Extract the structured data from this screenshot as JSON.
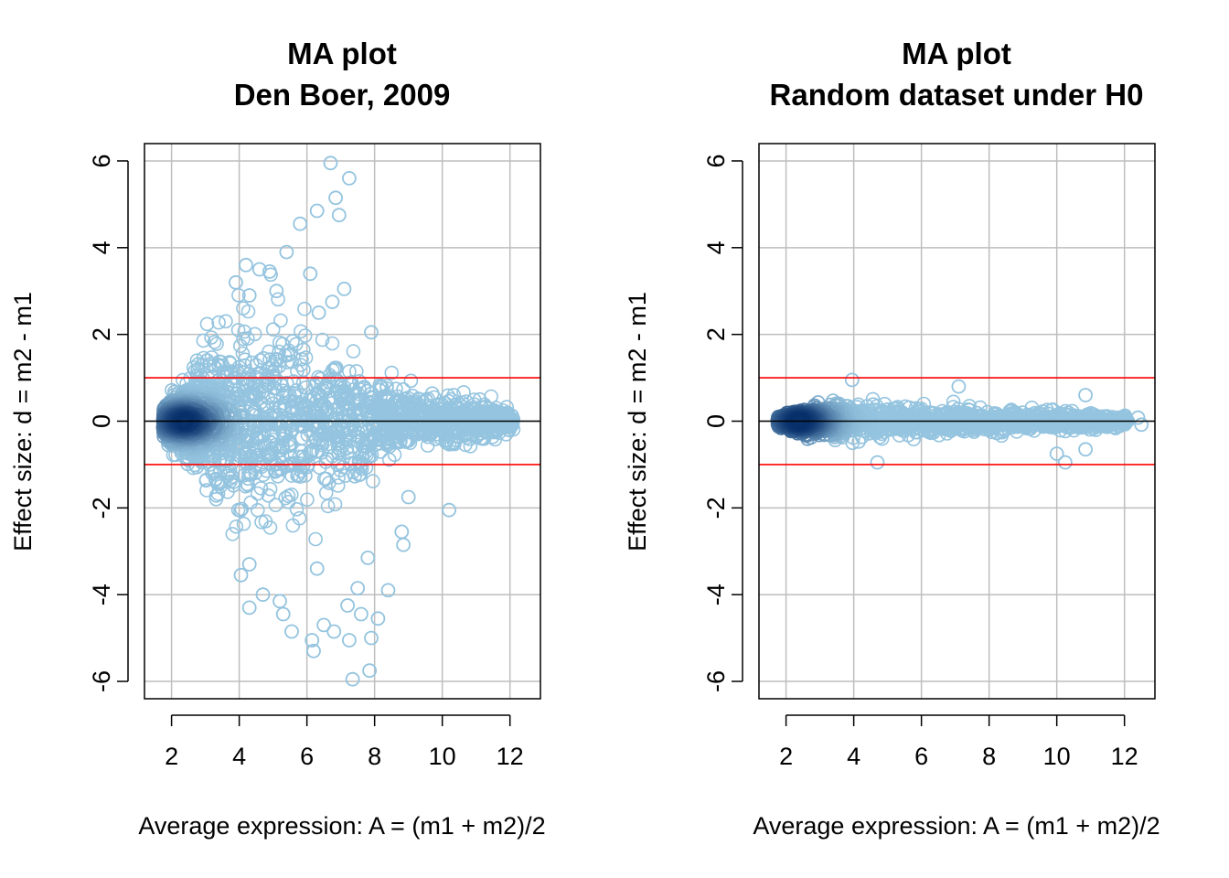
{
  "colors": {
    "background": "#ffffff",
    "frame": "#000000",
    "grid": "#bebebe",
    "threshold_line": "#ff0000",
    "zero_line": "#000000",
    "points_light": "#94c4df",
    "points_dense": "#08306b"
  },
  "chart_data": [
    {
      "type": "scatter",
      "title_line1": "MA plot",
      "title_line2": "Den Boer, 2009",
      "xlabel": "Average expression: A = (m1 + m2)/2",
      "ylabel": "Effect size: d = m2 - m1",
      "xlim": [
        1.2,
        12.9
      ],
      "ylim": [
        -6.4,
        6.4
      ],
      "x_ticks": [
        2,
        4,
        6,
        8,
        10,
        12
      ],
      "y_ticks": [
        6,
        4,
        2,
        0,
        -2,
        -4,
        -6
      ],
      "x_tick_labels": [
        "2",
        "4",
        "6",
        "8",
        "10",
        "12"
      ],
      "y_tick_labels": [
        "6",
        "4",
        "2",
        "0",
        "-2",
        "-4",
        "-6"
      ],
      "grid": true,
      "hlines": [
        {
          "y": 1,
          "color": "#ff0000"
        },
        {
          "y": -1,
          "color": "#ff0000"
        },
        {
          "y": 0,
          "color": "#000000"
        }
      ],
      "marker": "open-circle",
      "density_coloring": "dark blue at high density, light blue at low density",
      "cloud_profile": [
        {
          "a": 1.8,
          "spread": 0.4
        },
        {
          "a": 2.5,
          "spread": 0.9
        },
        {
          "a": 3.0,
          "spread": 1.6
        },
        {
          "a": 4.0,
          "spread": 2.4
        },
        {
          "a": 5.0,
          "spread": 2.6
        },
        {
          "a": 6.0,
          "spread": 2.2
        },
        {
          "a": 7.0,
          "spread": 1.7
        },
        {
          "a": 8.0,
          "spread": 1.1
        },
        {
          "a": 9.0,
          "spread": 0.75
        },
        {
          "a": 10.0,
          "spread": 0.6
        },
        {
          "a": 11.0,
          "spread": 0.55
        },
        {
          "a": 12.0,
          "spread": 0.25
        }
      ],
      "outliers": [
        [
          6.7,
          5.95
        ],
        [
          7.25,
          5.6
        ],
        [
          6.85,
          5.15
        ],
        [
          6.95,
          4.75
        ],
        [
          6.3,
          4.85
        ],
        [
          5.8,
          4.55
        ],
        [
          5.4,
          3.9
        ],
        [
          4.2,
          3.6
        ],
        [
          4.9,
          3.45
        ],
        [
          4.3,
          2.9
        ],
        [
          6.1,
          3.4
        ],
        [
          3.9,
          3.2
        ],
        [
          5.1,
          3.0
        ],
        [
          6.75,
          2.75
        ],
        [
          7.1,
          3.05
        ],
        [
          6.35,
          2.5
        ],
        [
          7.9,
          2.05
        ],
        [
          4.6,
          3.5
        ],
        [
          4.3,
          -4.3
        ],
        [
          4.05,
          -3.55
        ],
        [
          4.7,
          -4.0
        ],
        [
          5.3,
          -4.45
        ],
        [
          5.55,
          -4.85
        ],
        [
          6.2,
          -5.3
        ],
        [
          6.15,
          -5.05
        ],
        [
          6.8,
          -4.85
        ],
        [
          7.25,
          -5.05
        ],
        [
          7.35,
          -5.95
        ],
        [
          7.85,
          -5.75
        ],
        [
          7.6,
          -4.45
        ],
        [
          7.5,
          -3.85
        ],
        [
          8.4,
          -3.9
        ],
        [
          8.1,
          -4.55
        ],
        [
          7.2,
          -4.25
        ],
        [
          7.9,
          -5.0
        ],
        [
          6.3,
          -3.4
        ],
        [
          5.2,
          -4.15
        ],
        [
          7.8,
          -3.15
        ],
        [
          8.8,
          -2.55
        ],
        [
          8.85,
          -2.85
        ],
        [
          10.2,
          -2.05
        ],
        [
          9.0,
          -1.75
        ],
        [
          4.3,
          -3.3
        ],
        [
          6.5,
          -4.7
        ]
      ]
    },
    {
      "type": "scatter",
      "title_line1": "MA plot",
      "title_line2": "Random dataset under H0",
      "xlabel": "Average expression: A = (m1 + m2)/2",
      "ylabel": "Effect size: d = m2 - m1",
      "xlim": [
        1.2,
        12.9
      ],
      "ylim": [
        -6.4,
        6.4
      ],
      "x_ticks": [
        2,
        4,
        6,
        8,
        10,
        12
      ],
      "y_ticks": [
        6,
        4,
        2,
        0,
        -2,
        -4,
        -6
      ],
      "x_tick_labels": [
        "2",
        "4",
        "6",
        "8",
        "10",
        "12"
      ],
      "y_tick_labels": [
        "6",
        "4",
        "2",
        "0",
        "-2",
        "-4",
        "-6"
      ],
      "grid": true,
      "hlines": [
        {
          "y": 1,
          "color": "#ff0000"
        },
        {
          "y": -1,
          "color": "#ff0000"
        },
        {
          "y": 0,
          "color": "#000000"
        }
      ],
      "marker": "open-circle",
      "density_coloring": "dark blue at high density, light blue at low density",
      "cloud_profile": [
        {
          "a": 1.8,
          "spread": 0.12
        },
        {
          "a": 2.5,
          "spread": 0.3
        },
        {
          "a": 3.0,
          "spread": 0.38
        },
        {
          "a": 4.0,
          "spread": 0.45
        },
        {
          "a": 5.0,
          "spread": 0.45
        },
        {
          "a": 6.0,
          "spread": 0.4
        },
        {
          "a": 7.0,
          "spread": 0.35
        },
        {
          "a": 8.0,
          "spread": 0.3
        },
        {
          "a": 9.0,
          "spread": 0.25
        },
        {
          "a": 10.0,
          "spread": 0.22
        },
        {
          "a": 11.0,
          "spread": 0.2
        },
        {
          "a": 12.0,
          "spread": 0.12
        }
      ],
      "outliers": [
        [
          3.95,
          0.95
        ],
        [
          7.1,
          0.8
        ],
        [
          10.85,
          0.6
        ],
        [
          4.7,
          -0.95
        ],
        [
          10.25,
          -0.95
        ],
        [
          10.0,
          -0.75
        ],
        [
          10.85,
          -0.65
        ],
        [
          12.5,
          -0.08
        ],
        [
          12.4,
          0.08
        ]
      ]
    }
  ]
}
